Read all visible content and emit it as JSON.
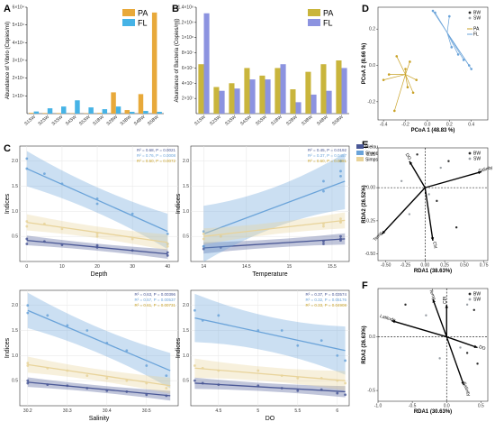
{
  "panel_labels": {
    "A": "A",
    "B": "B",
    "C": "C",
    "D": "D",
    "E": "E",
    "F": "F"
  },
  "colors": {
    "PA": "#e8a93a",
    "FL": "#46b3e6",
    "PA_B": "#c9b53c",
    "FL_B": "#8c93e0",
    "Pielou": "#4a5896",
    "Shannon": "#6aa3d9",
    "Simpson": "#e8d39a",
    "bw": "#2a2a2a",
    "sw": "#9aa0a6",
    "PA_pt": "#c9a227",
    "FL_pt": "#6aa3d9",
    "arrow": "#000000"
  },
  "chart_data": [
    {
      "id": "A",
      "type": "bar",
      "ylabel": "Abundance of Vibrio (Copies/ml)",
      "ylim": [
        0,
        60000
      ],
      "yticks": [
        "1×10⁴",
        "2×10⁴",
        "3×10⁴",
        "4×10⁴",
        "5×10⁴",
        "6×10⁴"
      ],
      "yticks_v": [
        10000,
        20000,
        30000,
        40000,
        50000,
        60000
      ],
      "categories": [
        "S1SW",
        "S2SW",
        "S3SW",
        "S4SW",
        "S5SW",
        "S1BW",
        "S2BW",
        "S3BW",
        "S4BW",
        "S5BW"
      ],
      "legend": [
        "PA",
        "FL"
      ],
      "series": [
        {
          "name": "PA",
          "values": [
            400,
            300,
            300,
            200,
            200,
            400,
            12000,
            2000,
            11000,
            57000
          ]
        },
        {
          "name": "FL",
          "values": [
            1200,
            3000,
            4000,
            7500,
            3500,
            2500,
            4000,
            1000,
            1500,
            1000
          ]
        }
      ]
    },
    {
      "id": "B",
      "type": "bar",
      "ylabel": "Abundance of Bacteria (Copies/ml)",
      "ylim": [
        0,
        140000000
      ],
      "yticks": [
        "2×10⁷",
        "4×10⁷",
        "6×10⁷",
        "8×10⁷",
        "1×10⁸",
        "1.2×10⁸",
        "1.4×10⁸"
      ],
      "yticks_v": [
        20000000,
        40000000,
        60000000,
        80000000,
        100000000,
        120000000,
        140000000
      ],
      "categories": [
        "S1SW",
        "S2SW",
        "S3SW",
        "S4SW",
        "S5SW",
        "S1BW",
        "S2BW",
        "S3BW",
        "S4BW",
        "S5BW"
      ],
      "legend": [
        "PA",
        "FL"
      ],
      "series": [
        {
          "name": "PA",
          "values": [
            65000000,
            35000000,
            40000000,
            60000000,
            50000000,
            60000000,
            32000000,
            55000000,
            65000000,
            70000000
          ]
        },
        {
          "name": "FL",
          "values": [
            132000000,
            30000000,
            33000000,
            45000000,
            45000000,
            65000000,
            15000000,
            25000000,
            30000000,
            60000000
          ]
        }
      ]
    },
    {
      "id": "C1",
      "type": "scatter",
      "xlabel": "Depth",
      "ylabel": "Indices",
      "xlim": [
        -2,
        43
      ],
      "ylim": [
        0,
        2.3
      ],
      "xticks": [
        0,
        10,
        20,
        30,
        40
      ],
      "yticks": [
        0.5,
        1.0,
        1.5,
        2.0
      ],
      "stats": [
        "R² = 0.68, P = 0.0021",
        "R² = 0.76, P = 0.0008",
        "R² = 0.50, P = 0.0072"
      ],
      "legend": [
        "Pielou",
        "Shannon",
        "Simpson"
      ],
      "series": [
        {
          "name": "Pielou",
          "x": [
            0,
            0,
            5,
            10,
            20,
            20,
            30,
            40,
            40
          ],
          "y": [
            0.45,
            0.35,
            0.4,
            0.33,
            0.32,
            0.28,
            0.22,
            0.18,
            0.12
          ],
          "fit": [
            [
              0,
              0.42
            ],
            [
              40,
              0.15
            ]
          ],
          "band": 0.06
        },
        {
          "name": "Shannon",
          "x": [
            0,
            0,
            5,
            10,
            20,
            20,
            30,
            40,
            40
          ],
          "y": [
            2.05,
            1.85,
            1.75,
            1.55,
            1.15,
            1.25,
            0.95,
            0.55,
            0.35
          ],
          "fit": [
            [
              0,
              1.85
            ],
            [
              40,
              0.6
            ]
          ],
          "band": 0.22
        },
        {
          "name": "Simpson",
          "x": [
            0,
            0,
            5,
            10,
            20,
            20,
            30,
            40,
            40
          ],
          "y": [
            0.8,
            0.7,
            0.75,
            0.65,
            0.55,
            0.5,
            0.45,
            0.35,
            0.3
          ],
          "fit": [
            [
              0,
              0.78
            ],
            [
              40,
              0.38
            ]
          ],
          "band": 0.1
        }
      ]
    },
    {
      "id": "C2",
      "type": "scatter",
      "xlabel": "Temperature",
      "ylabel": "Indices",
      "xlim": [
        13.85,
        15.7
      ],
      "ylim": [
        0,
        2.3
      ],
      "xticks": [
        14.0,
        14.5,
        15.0,
        15.5
      ],
      "yticks": [
        0.5,
        1.0,
        1.5,
        2.0
      ],
      "stats": [
        "R² = 0.45, P = 0.0192",
        "R² = 0.37, P = 0.0457",
        "R² = 0.60, P = 0.0081"
      ],
      "legend": [
        "Pielou",
        "Shannon",
        "Simpson"
      ],
      "series": [
        {
          "name": "Pielou",
          "x": [
            14.0,
            14.0,
            14.2,
            15.4,
            15.4,
            15.6,
            15.6,
            15.6
          ],
          "y": [
            0.3,
            0.25,
            0.28,
            0.35,
            0.4,
            0.45,
            0.5,
            0.42
          ],
          "fit": [
            [
              14.0,
              0.27
            ],
            [
              15.65,
              0.45
            ]
          ],
          "band": 0.07
        },
        {
          "name": "Shannon",
          "x": [
            14.0,
            14.0,
            14.2,
            15.4,
            15.4,
            15.6,
            15.6,
            15.6
          ],
          "y": [
            0.3,
            0.6,
            0.5,
            1.6,
            1.4,
            1.8,
            2.0,
            1.7
          ],
          "fit": [
            [
              14.0,
              0.55
            ],
            [
              15.65,
              1.6
            ]
          ],
          "band": 0.35
        },
        {
          "name": "Simpson",
          "x": [
            14.0,
            14.0,
            14.2,
            15.4,
            15.4,
            15.6,
            15.6,
            15.6
          ],
          "y": [
            0.45,
            0.55,
            0.5,
            0.75,
            0.7,
            0.8,
            0.85,
            0.78
          ],
          "fit": [
            [
              14.0,
              0.5
            ],
            [
              15.65,
              0.82
            ]
          ],
          "band": 0.1
        }
      ]
    },
    {
      "id": "C3",
      "type": "scatter",
      "xlabel": "Salinity",
      "ylabel": "Indices",
      "xlim": [
        30.18,
        30.58
      ],
      "ylim": [
        0,
        2.3
      ],
      "xticks": [
        30.2,
        30.3,
        30.4,
        30.5
      ],
      "yticks": [
        0.5,
        1.0,
        1.5,
        2.0
      ],
      "stats": [
        "R² = 0.63, P = 0.00396",
        "R² = 0.57, P = 0.00537",
        "R² = 0.61, P = 0.00731"
      ],
      "legend": [
        "Pielou",
        "Shannon",
        "Simpson"
      ],
      "series": [
        {
          "name": "Pielou",
          "x": [
            30.2,
            30.2,
            30.25,
            30.3,
            30.35,
            30.4,
            30.45,
            30.5,
            30.55
          ],
          "y": [
            0.5,
            0.45,
            0.42,
            0.4,
            0.35,
            0.3,
            0.28,
            0.22,
            0.2
          ],
          "fit": [
            [
              30.2,
              0.47
            ],
            [
              30.56,
              0.2
            ]
          ],
          "band": 0.06
        },
        {
          "name": "Shannon",
          "x": [
            30.2,
            30.2,
            30.25,
            30.3,
            30.35,
            30.4,
            30.45,
            30.5,
            30.55
          ],
          "y": [
            2.0,
            1.85,
            1.8,
            1.6,
            1.5,
            1.25,
            1.1,
            0.8,
            0.6
          ],
          "fit": [
            [
              30.2,
              1.9
            ],
            [
              30.56,
              0.7
            ]
          ],
          "band": 0.22
        },
        {
          "name": "Simpson",
          "x": [
            30.2,
            30.2,
            30.25,
            30.3,
            30.35,
            30.4,
            30.45,
            30.5,
            30.55
          ],
          "y": [
            0.85,
            0.8,
            0.75,
            0.7,
            0.6,
            0.55,
            0.5,
            0.45,
            0.35
          ],
          "fit": [
            [
              30.2,
              0.82
            ],
            [
              30.56,
              0.4
            ]
          ],
          "band": 0.1
        }
      ]
    },
    {
      "id": "C4",
      "type": "scatter",
      "xlabel": "DO",
      "ylabel": "Indices",
      "xlim": [
        4.15,
        6.15
      ],
      "ylim": [
        0,
        2.3
      ],
      "xticks": [
        4.5,
        5.0,
        5.5,
        6.0
      ],
      "yticks": [
        0.5,
        1.0,
        1.5,
        2.0
      ],
      "stats": [
        "R² = 0.37, P = 0.03574",
        "R² = 0.32, P = 0.05176",
        "R² = 0.33, P = 0.04908"
      ],
      "legend": [
        "Pielou",
        "Shannon",
        "Simpson"
      ],
      "series": [
        {
          "name": "Pielou",
          "x": [
            4.2,
            4.3,
            4.5,
            5.0,
            5.3,
            5.5,
            5.8,
            6.0,
            6.1
          ],
          "y": [
            0.5,
            0.45,
            0.42,
            0.4,
            0.35,
            0.3,
            0.32,
            0.25,
            0.22
          ],
          "fit": [
            [
              4.2,
              0.45
            ],
            [
              6.1,
              0.28
            ]
          ],
          "band": 0.07
        },
        {
          "name": "Shannon",
          "x": [
            4.2,
            4.3,
            4.5,
            5.0,
            5.3,
            5.5,
            5.8,
            6.0,
            6.1
          ],
          "y": [
            1.9,
            1.7,
            1.8,
            1.5,
            1.5,
            1.2,
            1.3,
            1.0,
            0.9
          ],
          "fit": [
            [
              4.2,
              1.75
            ],
            [
              6.1,
              1.1
            ]
          ],
          "band": 0.3
        },
        {
          "name": "Simpson",
          "x": [
            4.2,
            4.3,
            4.5,
            5.0,
            5.3,
            5.5,
            5.8,
            6.0,
            6.1
          ],
          "y": [
            0.8,
            0.75,
            0.7,
            0.7,
            0.6,
            0.55,
            0.55,
            0.5,
            0.45
          ],
          "fit": [
            [
              4.2,
              0.75
            ],
            [
              6.1,
              0.5
            ]
          ],
          "band": 0.12
        }
      ]
    },
    {
      "id": "D",
      "type": "scatter",
      "xlabel": "PCoA 1 (48.83 %)",
      "ylabel": "PCoA 2 (8.66 %)",
      "xlim": [
        -0.45,
        0.55
      ],
      "ylim": [
        -0.3,
        0.32
      ],
      "xticks": [
        "-0.4",
        "-0.2",
        "0.0",
        "0.2",
        "0.4"
      ],
      "xticks_v": [
        -0.4,
        -0.2,
        0.0,
        0.2,
        0.4
      ],
      "yticks": [
        "-0.2",
        "0.0",
        "0.2"
      ],
      "yticks_v": [
        -0.2,
        0.0,
        0.2
      ],
      "legend": [
        "BW",
        "SW",
        "PA",
        "FL"
      ],
      "groups": [
        {
          "name": "FL",
          "centroid": [
            0.18,
            0.18
          ],
          "points": [
            [
              0.05,
              0.3
            ],
            [
              0.07,
              0.29
            ],
            [
              0.2,
              0.27
            ],
            [
              0.22,
              0.1
            ],
            [
              0.4,
              -0.02
            ],
            [
              0.38,
              0.0
            ],
            [
              0.33,
              0.03
            ],
            [
              0.28,
              0.06
            ]
          ]
        },
        {
          "name": "PA",
          "centroid": [
            -0.2,
            -0.05
          ],
          "points": [
            [
              -0.4,
              -0.08
            ],
            [
              -0.3,
              -0.25
            ],
            [
              -0.28,
              0.05
            ],
            [
              -0.2,
              -0.02
            ],
            [
              -0.16,
              0.02
            ],
            [
              -0.1,
              -0.08
            ],
            [
              -0.35,
              -0.05
            ],
            [
              -0.13,
              -0.15
            ],
            [
              -0.18,
              -0.12
            ]
          ]
        }
      ]
    },
    {
      "id": "E",
      "type": "scatter",
      "xlabel": "RDA1 (38.63%)",
      "ylabel": "RDA2 (26.52%)",
      "xlim": [
        -0.6,
        0.8
      ],
      "ylim": [
        -0.55,
        0.3
      ],
      "xticks": [
        "-0.50",
        "-0.25",
        "0.00",
        "0.25",
        "0.50",
        "0.75"
      ],
      "xticks_v": [
        -0.5,
        -0.25,
        0.0,
        0.25,
        0.5,
        0.75
      ],
      "yticks": [
        "-0.50",
        "-0.25",
        "0.00",
        "0.25"
      ],
      "yticks_v": [
        -0.5,
        -0.25,
        0.0,
        0.25
      ],
      "legend": [
        "BW",
        "SW"
      ],
      "vectors": [
        {
          "name": "Salinity",
          "x": 0.72,
          "y": 0.12
        },
        {
          "name": "DO",
          "x": -0.2,
          "y": 0.2
        },
        {
          "name": "Temp",
          "x": -0.55,
          "y": -0.35
        },
        {
          "name": "Chl",
          "x": 0.1,
          "y": -0.4
        }
      ],
      "points": [
        {
          "g": "BW",
          "x": 0.3,
          "y": 0.2
        },
        {
          "g": "SW",
          "x": 0.2,
          "y": 0.15
        },
        {
          "g": "BW",
          "x": -0.1,
          "y": 0.25
        },
        {
          "g": "SW",
          "x": -0.3,
          "y": 0.05
        },
        {
          "g": "SW",
          "x": 0.05,
          "y": -0.05
        },
        {
          "g": "BW",
          "x": 0.15,
          "y": -0.1
        },
        {
          "g": "SW",
          "x": -0.2,
          "y": -0.2
        },
        {
          "g": "BW",
          "x": 0.4,
          "y": -0.3
        }
      ]
    },
    {
      "id": "F",
      "type": "scatter",
      "xlabel": "RDA1 (30.63%)",
      "ylabel": "RDA2 (26.63%)",
      "xlim": [
        -1.0,
        0.6
      ],
      "ylim": [
        -0.6,
        0.45
      ],
      "xticks": [
        "-1.0",
        "-0.5",
        "0.0",
        "0.5"
      ],
      "xticks_v": [
        -1.0,
        -0.5,
        0.0,
        0.5
      ],
      "yticks": [
        "-0.5",
        "0.0"
      ],
      "yticks_v": [
        -0.5,
        0.0
      ],
      "legend": [
        "BW",
        "SW"
      ],
      "vectors": [
        {
          "name": "Latitude",
          "x": -0.8,
          "y": 0.15
        },
        {
          "name": "Temp",
          "x": -0.2,
          "y": 0.35
        },
        {
          "name": "CPI",
          "x": 0.0,
          "y": 0.3
        },
        {
          "name": "DO",
          "x": 0.45,
          "y": -0.1
        },
        {
          "name": "Salinity",
          "x": 0.25,
          "y": -0.45
        }
      ],
      "points": [
        {
          "g": "BW",
          "x": -0.6,
          "y": 0.3
        },
        {
          "g": "SW",
          "x": 0.3,
          "y": 0.3
        },
        {
          "g": "BW",
          "x": 0.4,
          "y": 0.25
        },
        {
          "g": "SW",
          "x": -0.3,
          "y": 0.2
        },
        {
          "g": "SW",
          "x": 0.2,
          "y": -0.1
        },
        {
          "g": "BW",
          "x": 0.3,
          "y": -0.15
        },
        {
          "g": "SW",
          "x": -0.1,
          "y": -0.2
        },
        {
          "g": "BW",
          "x": 0.45,
          "y": -0.25
        }
      ]
    }
  ]
}
